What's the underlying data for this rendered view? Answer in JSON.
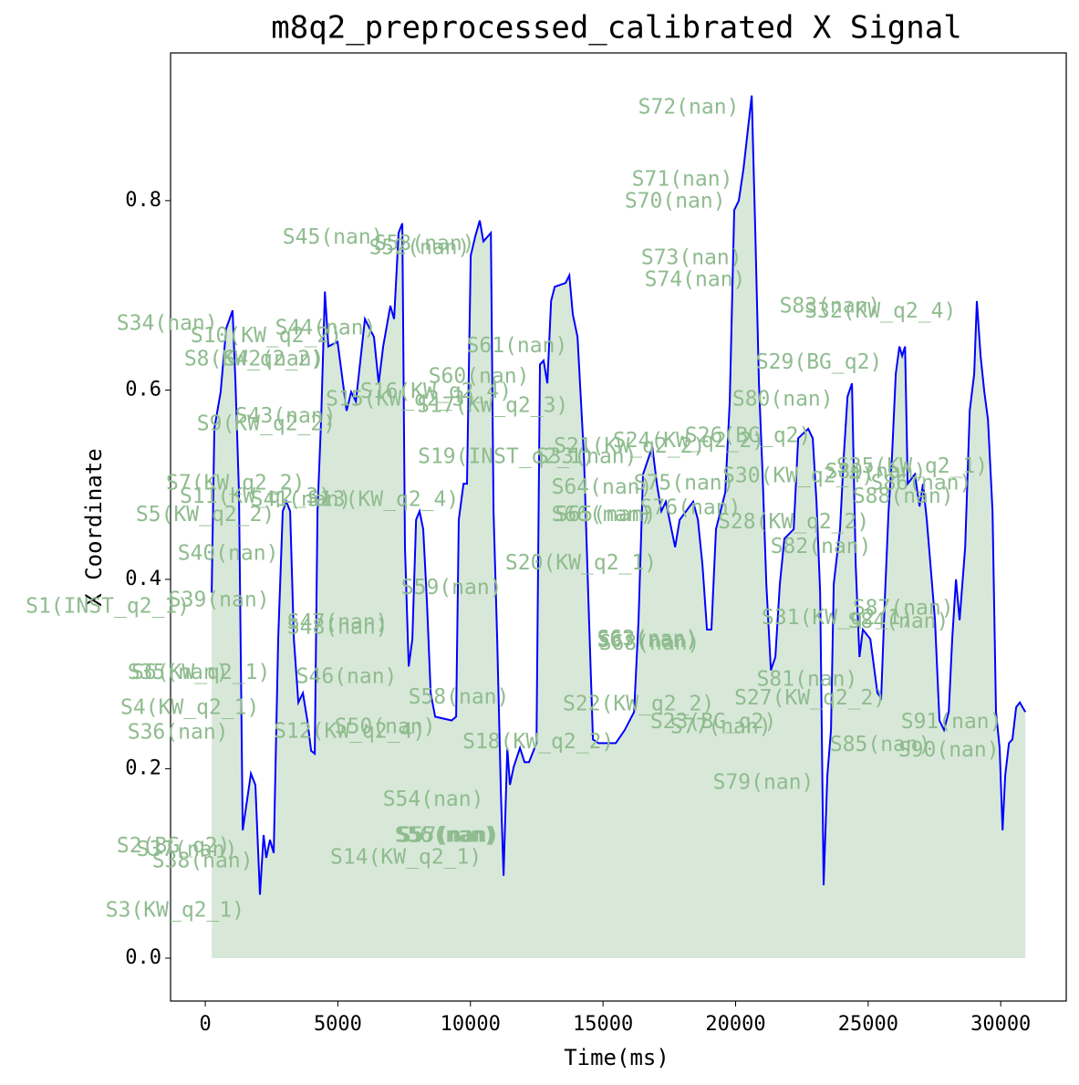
{
  "chart_data": {
    "type": "line",
    "title": "m8q2_preprocessed_calibrated X Signal",
    "x_label": "Time(ms)",
    "y_label": "X Coordinate",
    "xlim": [
      -1310,
      32470
    ],
    "ylim": [
      -0.0453,
      0.956
    ],
    "xticks": [
      0,
      5000,
      10000,
      15000,
      20000,
      25000,
      30000
    ],
    "yticks": [
      {
        "value": 0,
        "label": "0.0"
      },
      0.2,
      0.4,
      0.6,
      0.8
    ],
    "grid": false,
    "fill_color": "#8fbc8f",
    "series": [
      {
        "name": "X",
        "color": "#0000ff",
        "x": [
          240,
          340,
          580,
          790,
          1030,
          1140,
          1270,
          1410,
          1720,
          1890,
          2060,
          2200,
          2300,
          2440,
          2580,
          2750,
          2920,
          3060,
          3200,
          3340,
          3510,
          3680,
          3850,
          3990,
          4130,
          4230,
          4370,
          4510,
          4640,
          4990,
          5330,
          5500,
          5680,
          6020,
          6360,
          6540,
          6710,
          6980,
          7120,
          7290,
          7430,
          7530,
          7670,
          7810,
          7950,
          8080,
          8220,
          8360,
          8500,
          8670,
          9290,
          9460,
          9560,
          9740,
          9870,
          10010,
          10180,
          10350,
          10490,
          10770,
          10870,
          11010,
          11150,
          11250,
          11390,
          11490,
          11630,
          11870,
          12040,
          12210,
          12490,
          12620,
          12760,
          12900,
          13040,
          13180,
          13590,
          13730,
          13860,
          14040,
          14280,
          14450,
          14620,
          14830,
          15480,
          15820,
          16170,
          16340,
          16510,
          16860,
          17030,
          17200,
          17370,
          17720,
          17890,
          18400,
          18580,
          18750,
          18920,
          19090,
          19260,
          19610,
          19780,
          19950,
          20120,
          20300,
          20470,
          20610,
          20740,
          20880,
          21020,
          21160,
          21330,
          21500,
          21670,
          21840,
          22190,
          22360,
          22740,
          22910,
          23050,
          23190,
          23320,
          23460,
          23600,
          23700,
          23940,
          24080,
          24220,
          24390,
          24530,
          24670,
          24800,
          25080,
          25350,
          25490,
          25630,
          25770,
          25900,
          26040,
          26180,
          26280,
          26390,
          26490,
          26760,
          26940,
          27070,
          27210,
          27350,
          27520,
          27690,
          27860,
          28040,
          28170,
          28310,
          28450,
          28660,
          28830,
          29000,
          29100,
          29240,
          29380,
          29520,
          29690,
          29820,
          29960,
          30070,
          30170,
          30310,
          30440,
          30580,
          30720,
          30930
        ],
        "values": [
          0.386,
          0.559,
          0.598,
          0.665,
          0.684,
          0.607,
          0.492,
          0.135,
          0.195,
          0.183,
          0.067,
          0.13,
          0.106,
          0.125,
          0.111,
          0.337,
          0.472,
          0.482,
          0.472,
          0.337,
          0.27,
          0.28,
          0.251,
          0.219,
          0.216,
          0.472,
          0.569,
          0.704,
          0.646,
          0.651,
          0.578,
          0.598,
          0.588,
          0.675,
          0.656,
          0.607,
          0.646,
          0.689,
          0.675,
          0.766,
          0.776,
          0.434,
          0.308,
          0.337,
          0.463,
          0.472,
          0.453,
          0.376,
          0.28,
          0.255,
          0.251,
          0.255,
          0.463,
          0.501,
          0.501,
          0.742,
          0.762,
          0.779,
          0.757,
          0.766,
          0.472,
          0.337,
          0.174,
          0.087,
          0.222,
          0.183,
          0.202,
          0.222,
          0.207,
          0.207,
          0.227,
          0.627,
          0.631,
          0.607,
          0.694,
          0.709,
          0.713,
          0.721,
          0.68,
          0.656,
          0.53,
          0.376,
          0.231,
          0.227,
          0.227,
          0.241,
          0.26,
          0.357,
          0.511,
          0.54,
          0.501,
          0.472,
          0.482,
          0.434,
          0.463,
          0.482,
          0.463,
          0.415,
          0.347,
          0.347,
          0.453,
          0.492,
          0.588,
          0.79,
          0.8,
          0.834,
          0.877,
          0.911,
          0.771,
          0.607,
          0.511,
          0.395,
          0.304,
          0.318,
          0.395,
          0.443,
          0.453,
          0.549,
          0.559,
          0.549,
          0.482,
          0.386,
          0.077,
          0.193,
          0.241,
          0.395,
          0.453,
          0.53,
          0.593,
          0.607,
          0.415,
          0.318,
          0.347,
          0.337,
          0.28,
          0.275,
          0.381,
          0.472,
          0.53,
          0.617,
          0.646,
          0.636,
          0.646,
          0.501,
          0.511,
          0.477,
          0.501,
          0.463,
          0.415,
          0.357,
          0.251,
          0.241,
          0.26,
          0.337,
          0.4,
          0.357,
          0.434,
          0.578,
          0.617,
          0.694,
          0.636,
          0.598,
          0.569,
          0.472,
          0.26,
          0.222,
          0.135,
          0.193,
          0.227,
          0.231,
          0.265,
          0.27,
          0.26
        ]
      }
    ],
    "annotations": [
      {
        "text": "S72(nan)",
        "x": 18230,
        "y": 0.898
      },
      {
        "text": "S71(nan)",
        "x": 17990,
        "y": 0.822
      },
      {
        "text": "S70(nan)",
        "x": 17720,
        "y": 0.799
      },
      {
        "text": "S73(nan)",
        "x": 18340,
        "y": 0.739
      },
      {
        "text": "S74(nan)",
        "x": 18470,
        "y": 0.716
      },
      {
        "text": "S83(nan)",
        "x": 23560,
        "y": 0.688
      },
      {
        "text": "S32(KW_q2_4)",
        "x": 25460,
        "y": 0.683
      },
      {
        "text": "S29(BG_q2)",
        "x": 23150,
        "y": 0.629
      },
      {
        "text": "S80(nan)",
        "x": 21780,
        "y": 0.59
      },
      {
        "text": "S34(nan)",
        "x": -1440,
        "y": 0.67
      },
      {
        "text": "S10(KW_q2_2)",
        "x": 2300,
        "y": 0.657
      },
      {
        "text": "S44(nan)",
        "x": 4540,
        "y": 0.665
      },
      {
        "text": "S8(KW_q2_2)",
        "x": 1820,
        "y": 0.632
      },
      {
        "text": "S42(nan)",
        "x": 2580,
        "y": 0.632
      },
      {
        "text": "S45(nan)",
        "x": 4820,
        "y": 0.761
      },
      {
        "text": "S53(nan)",
        "x": 8260,
        "y": 0.754
      },
      {
        "text": "S52(nan)",
        "x": 8080,
        "y": 0.75
      },
      {
        "text": "S61(nan)",
        "x": 11760,
        "y": 0.646
      },
      {
        "text": "S60(nan)",
        "x": 10320,
        "y": 0.614
      },
      {
        "text": "S16(KW_q2_4)",
        "x": 8700,
        "y": 0.598
      },
      {
        "text": "S15(KW_q2_3)",
        "x": 7400,
        "y": 0.59
      },
      {
        "text": "S17(KW_q2_3)",
        "x": 10840,
        "y": 0.583
      },
      {
        "text": "S9(KW_q2_2)",
        "x": 2300,
        "y": 0.564
      },
      {
        "text": "S43(nan)",
        "x": 3030,
        "y": 0.572
      },
      {
        "text": "S19(INST_q2_1)",
        "x": 11350,
        "y": 0.529
      },
      {
        "text": "S33(nan)",
        "x": 14380,
        "y": 0.529
      },
      {
        "text": "S21(KW_q2_2)",
        "x": 16000,
        "y": 0.54
      },
      {
        "text": "S24(KW_q2_2)",
        "x": 18230,
        "y": 0.546
      },
      {
        "text": "S26(BG_q2)",
        "x": 20470,
        "y": 0.551
      },
      {
        "text": "S30(KW_q2_4)",
        "x": 22360,
        "y": 0.509
      },
      {
        "text": "S89(nan)",
        "x": 25280,
        "y": 0.513
      },
      {
        "text": "S25(KW_q2_1)",
        "x": 26660,
        "y": 0.519
      },
      {
        "text": "S86(nan)",
        "x": 27000,
        "y": 0.501
      },
      {
        "text": "S88(nan)",
        "x": 26320,
        "y": 0.487
      },
      {
        "text": "S64(nan)",
        "x": 14960,
        "y": 0.497
      },
      {
        "text": "S75(nan)",
        "x": 18060,
        "y": 0.501
      },
      {
        "text": "S76(nan)",
        "x": 18300,
        "y": 0.475
      },
      {
        "text": "S28(KW_q2_2)",
        "x": 22190,
        "y": 0.46
      },
      {
        "text": "S66(nan)",
        "x": 14960,
        "y": 0.468
      },
      {
        "text": "S65(nan)",
        "x": 15100,
        "y": 0.468
      },
      {
        "text": "S82(nan)",
        "x": 23220,
        "y": 0.434
      },
      {
        "text": "S7(KW_q2_2)",
        "x": 1140,
        "y": 0.501
      },
      {
        "text": "S11(KW_q2_3)",
        "x": 1890,
        "y": 0.487
      },
      {
        "text": "S13(KW_q2_4)",
        "x": 6710,
        "y": 0.484
      },
      {
        "text": "S41(nan)",
        "x": 3610,
        "y": 0.484
      },
      {
        "text": "S5(KW_q2_2)",
        "x": 0,
        "y": 0.468
      },
      {
        "text": "S40(nan)",
        "x": 860,
        "y": 0.427
      },
      {
        "text": "S20(KW_q2_1)",
        "x": 14170,
        "y": 0.417
      },
      {
        "text": "S59(nan)",
        "x": 9290,
        "y": 0.391
      },
      {
        "text": "S39(nan)",
        "x": 520,
        "y": 0.378
      },
      {
        "text": "S1(INST_q2_1)",
        "x": -3680,
        "y": 0.371
      },
      {
        "text": "S47(nan)",
        "x": 4990,
        "y": 0.354
      },
      {
        "text": "S48(nan)",
        "x": 4990,
        "y": 0.349
      },
      {
        "text": "S31(KW_q2_1)",
        "x": 23840,
        "y": 0.359
      },
      {
        "text": "S87(nan)",
        "x": 26320,
        "y": 0.369
      },
      {
        "text": "S84(nan)",
        "x": 26140,
        "y": 0.355
      },
      {
        "text": "S63(nan)",
        "x": 16680,
        "y": 0.337
      },
      {
        "text": "S67(nan)",
        "x": 16680,
        "y": 0.335
      },
      {
        "text": "S68(nan)",
        "x": 16750,
        "y": 0.332
      },
      {
        "text": "S6(KW_q2_1)",
        "x": -170,
        "y": 0.301
      },
      {
        "text": "S35(nan)",
        "x": -1030,
        "y": 0.301
      },
      {
        "text": "S46(nan)",
        "x": 5330,
        "y": 0.297
      },
      {
        "text": "S81(nan)",
        "x": 22700,
        "y": 0.294
      },
      {
        "text": "S4(KW_q2_1)",
        "x": -580,
        "y": 0.264
      },
      {
        "text": "S27(KW_q2_2)",
        "x": 22810,
        "y": 0.274
      },
      {
        "text": "S58(nan)",
        "x": 9560,
        "y": 0.275
      },
      {
        "text": "S22(KW_q2_2)",
        "x": 16340,
        "y": 0.268
      },
      {
        "text": "S23(BG_q2)",
        "x": 19160,
        "y": 0.249
      },
      {
        "text": "S77(nan)",
        "x": 19440,
        "y": 0.244
      },
      {
        "text": "S36(nan)",
        "x": -1030,
        "y": 0.238
      },
      {
        "text": "S12(KW_q2_4)",
        "x": 5440,
        "y": 0.239
      },
      {
        "text": "S50(nan)",
        "x": 6780,
        "y": 0.244
      },
      {
        "text": "S18(KW_q2_2)",
        "x": 12560,
        "y": 0.228
      },
      {
        "text": "S91(nan)",
        "x": 28140,
        "y": 0.249
      },
      {
        "text": "S85(nan)",
        "x": 25460,
        "y": 0.225
      },
      {
        "text": "S90(nan)",
        "x": 28040,
        "y": 0.219
      },
      {
        "text": "S79(nan)",
        "x": 21050,
        "y": 0.185
      },
      {
        "text": "S54(nan)",
        "x": 8600,
        "y": 0.167
      },
      {
        "text": "S55(nan)",
        "x": 9120,
        "y": 0.129
      },
      {
        "text": "S56(nan)",
        "x": 9050,
        "y": 0.129
      },
      {
        "text": "S57(nan)",
        "x": 9190,
        "y": 0.129
      },
      {
        "text": "S2(BG_q2)",
        "x": -1200,
        "y": 0.118
      },
      {
        "text": "S37(nan)",
        "x": -690,
        "y": 0.114
      },
      {
        "text": "S38(nan)",
        "x": -100,
        "y": 0.102
      },
      {
        "text": "S14(KW_q2_1)",
        "x": 7570,
        "y": 0.106
      },
      {
        "text": "S3(KW_q2_1)",
        "x": -1140,
        "y": 0.05
      }
    ]
  }
}
